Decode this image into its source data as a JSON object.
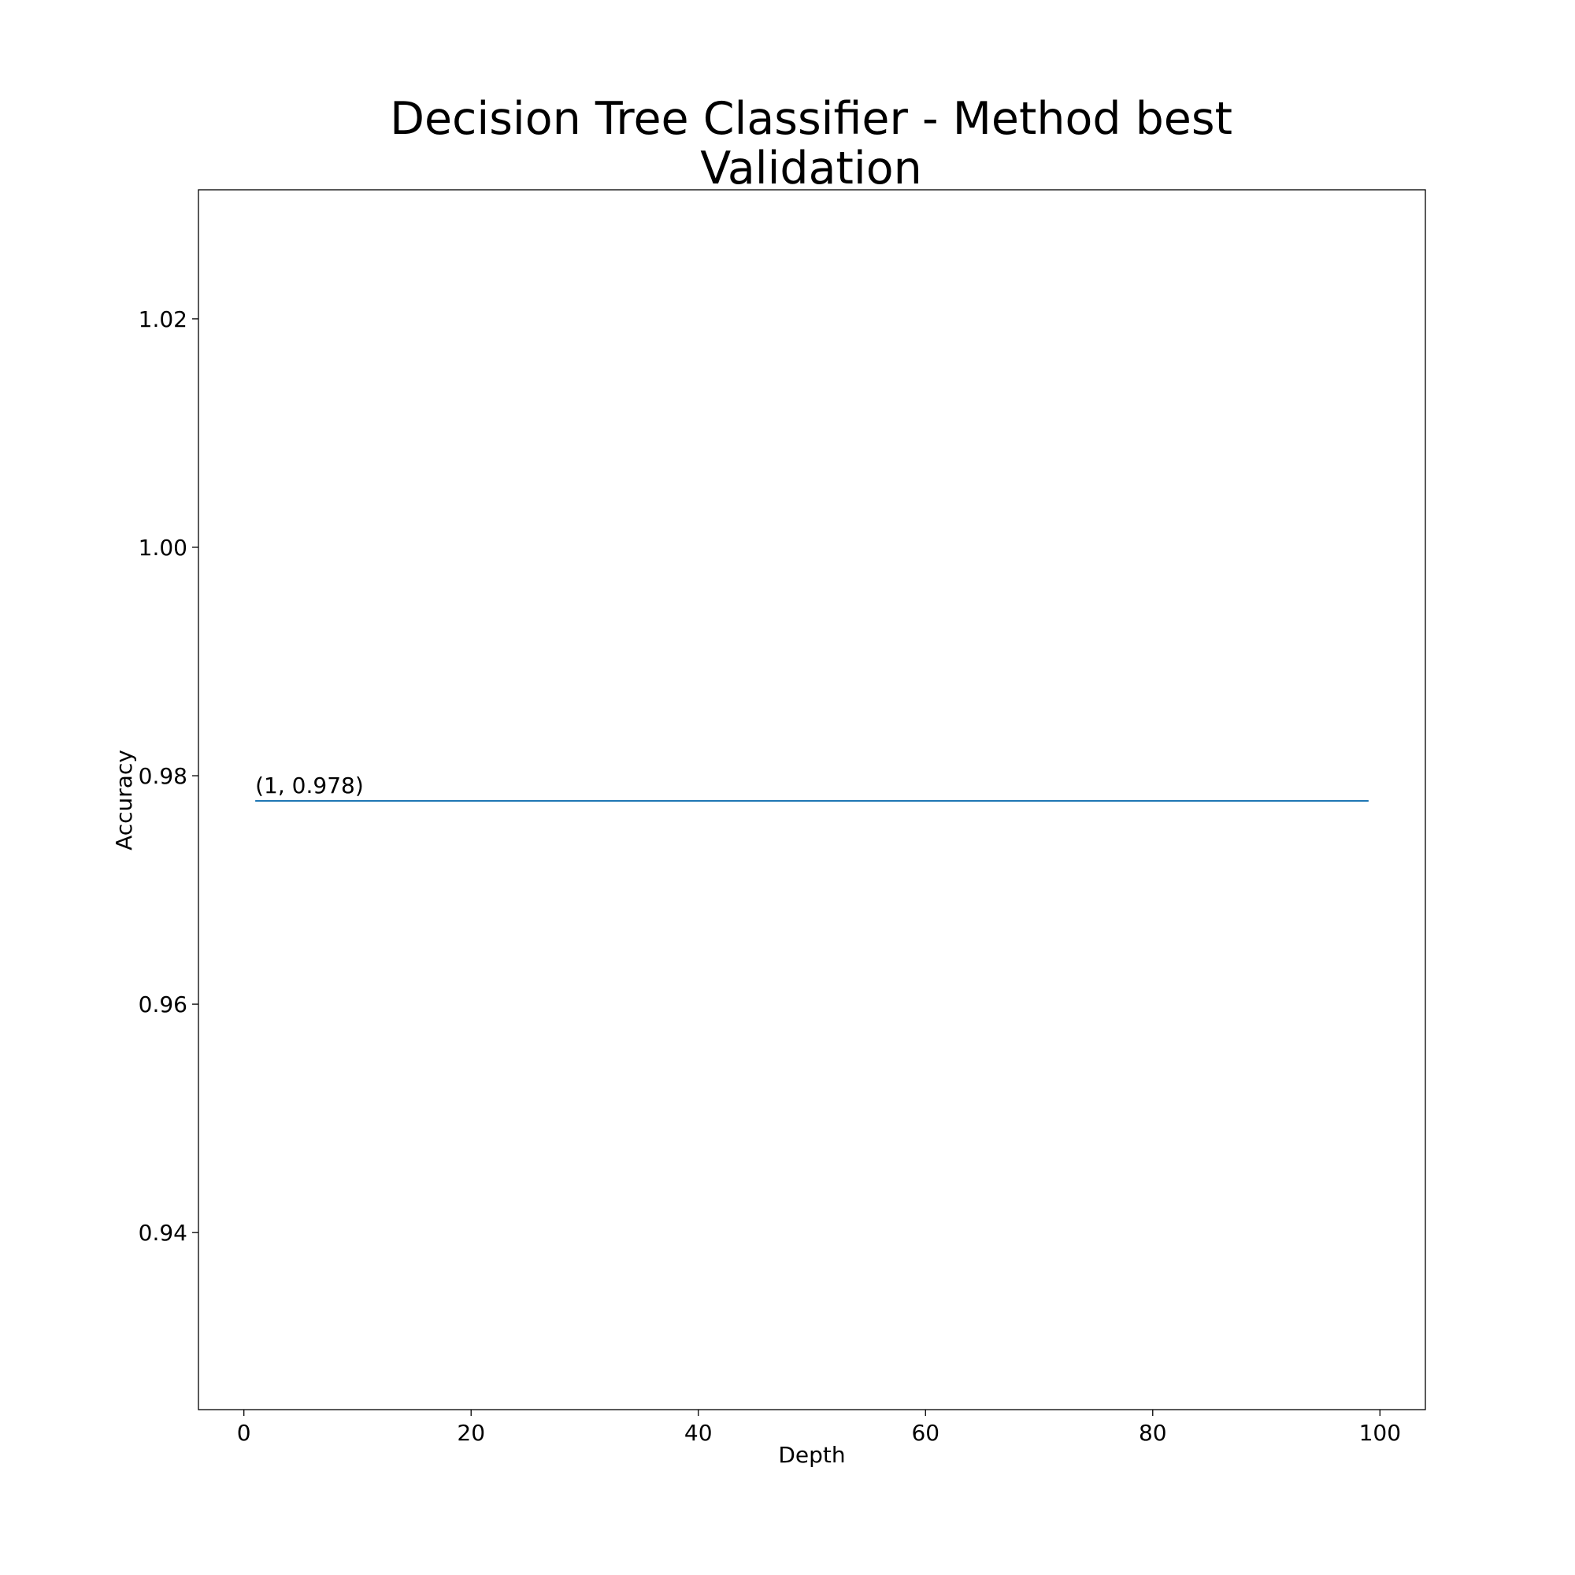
{
  "chart_data": {
    "type": "line",
    "title_lines": [
      "Decision Tree Classifier - Method best",
      "Validation"
    ],
    "xlabel": "Depth",
    "ylabel": "Accuracy",
    "xlim": [
      -4,
      104
    ],
    "ylim": [
      0.9245,
      1.0313
    ],
    "x_ticks": [
      0,
      20,
      40,
      60,
      80,
      100
    ],
    "x_tick_labels": [
      "0",
      "20",
      "40",
      "60",
      "80",
      "100"
    ],
    "y_ticks": [
      0.94,
      0.96,
      0.98,
      1.0,
      1.02
    ],
    "y_tick_labels": [
      "0.94",
      "0.96",
      "0.98",
      "1.00",
      "1.02"
    ],
    "grid": false,
    "series": [
      {
        "color": "#1f77b4",
        "x": [
          1,
          99
        ],
        "y": [
          0.9778,
          0.9778
        ]
      }
    ],
    "annotations": [
      {
        "text": "(1, 0.978)",
        "x": 1,
        "y": 0.9778
      }
    ]
  }
}
